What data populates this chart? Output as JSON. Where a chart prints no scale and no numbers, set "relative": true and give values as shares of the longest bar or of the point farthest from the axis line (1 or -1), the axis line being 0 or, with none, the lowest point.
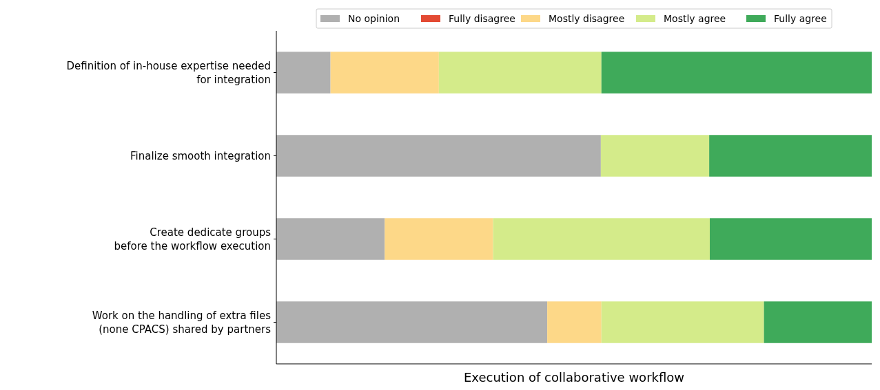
{
  "chart_data": {
    "type": "bar",
    "orientation": "horizontal",
    "stacked": true,
    "relative": true,
    "xlabel": "Execution of collaborative workflow",
    "legend": "top",
    "categories": [
      "Definition of in-house expertise needed\nfor integration",
      "Finalize smooth integration",
      "Create dedicate groups\nbefore the workflow execution",
      "Work on the handling of extra files\n(none CPACS) shared by partners"
    ],
    "series": [
      {
        "name": "No opinion",
        "color": "#b0b0b0",
        "values": [
          0.091,
          0.545,
          0.182,
          0.455
        ]
      },
      {
        "name": "Fully disagree",
        "color": "#e34a33",
        "values": [
          0,
          0,
          0,
          0
        ]
      },
      {
        "name": "Mostly disagree",
        "color": "#fdd888",
        "values": [
          0.182,
          0,
          0.182,
          0.091
        ]
      },
      {
        "name": "Mostly agree",
        "color": "#d4eb8a",
        "values": [
          0.273,
          0.182,
          0.364,
          0.273
        ]
      },
      {
        "name": "Fully agree",
        "color": "#3faa5a",
        "values": [
          0.454,
          0.273,
          0.272,
          0.181
        ]
      }
    ]
  }
}
